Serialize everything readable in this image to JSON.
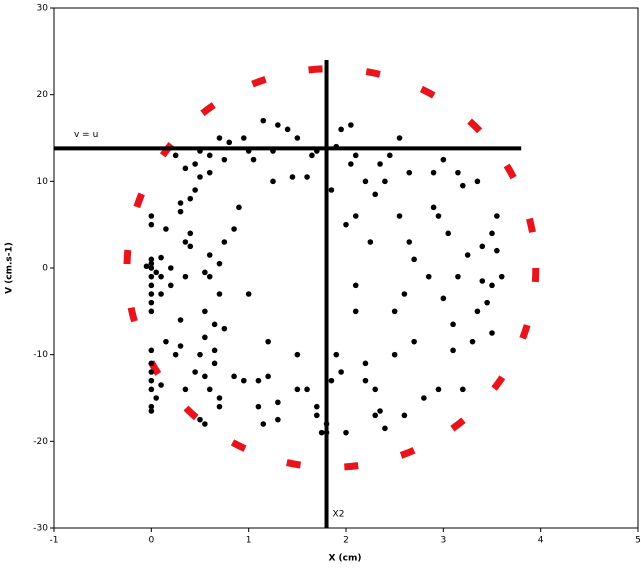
{
  "chart_data": {
    "type": "scatter",
    "x_label": "X (cm)",
    "y_label": "V (cm.s-1)",
    "xlim": [
      -1,
      5
    ],
    "ylim": [
      -30,
      30
    ],
    "xticks": [
      -1,
      0,
      1,
      2,
      3,
      4,
      5
    ],
    "yticks": [
      -30,
      -20,
      -10,
      0,
      10,
      20,
      30
    ],
    "ellipse": {
      "cx": 1.85,
      "cy": 0,
      "rx": 2.1,
      "ry": 23,
      "color": "#e8141b"
    },
    "hline": {
      "y": 13.8,
      "xrange": [
        -1,
        3.8
      ],
      "label": "v = u"
    },
    "vline": {
      "x": 1.8,
      "yrange": [
        -30,
        24
      ],
      "label": "X2"
    },
    "series": [
      {
        "color": "#000000",
        "x": [
          0,
          0,
          0,
          0,
          0,
          0,
          0,
          0,
          0,
          0,
          0,
          0,
          0,
          0,
          0,
          0,
          0,
          0.05,
          -0.05,
          0.1,
          0.1,
          0.1,
          0.15,
          0.2,
          0.2,
          0.15,
          0.3,
          0.3,
          0.3,
          0.3,
          0.35,
          0.35,
          0.4,
          0.4,
          0.4,
          0.45,
          0.5,
          0.45,
          0.5,
          0.55,
          0.55,
          0.55,
          0.55,
          0.6,
          0.6,
          0.6,
          0.65,
          0.65,
          0.7,
          0.7,
          0.6,
          0.6,
          0.7,
          0.7,
          0.75,
          0.75,
          0.75,
          0.8,
          0.5,
          0.5,
          0.45,
          0.35,
          0.25,
          0.25,
          0.35,
          0.7,
          0.65,
          0.9,
          0.95,
          1.0,
          0.95,
          0.85,
          1.05,
          1.1,
          1.15,
          1.2,
          1.25,
          1.25,
          1.3,
          1.1,
          1.15,
          1.2,
          1.3,
          1.3,
          1.4,
          1.5,
          1.45,
          1.5,
          1.6,
          1.6,
          1.65,
          1.7,
          1.7,
          1.75,
          1.8,
          1.7,
          1.85,
          1.85,
          1.8,
          1.9,
          1.95,
          2.05,
          1.9,
          2.0,
          1.95,
          2.05,
          2.1,
          2.1,
          2.1,
          2.2,
          2.2,
          2.25,
          2.3,
          2.3,
          2.35,
          2.3,
          2.2,
          2.4,
          2.35,
          2.4,
          2.45,
          2.5,
          2.5,
          2.55,
          2.6,
          2.55,
          2.65,
          2.6,
          2.65,
          2.7,
          2.8,
          2.85,
          2.9,
          2.95,
          2.95,
          3.0,
          3.0,
          3.05,
          3.1,
          3.15,
          3.15,
          3.2,
          3.2,
          3.25,
          3.3,
          3.35,
          3.35,
          3.4,
          3.45,
          3.5,
          3.5,
          3.55,
          3.6,
          3.55,
          3.5,
          3.4,
          2.0,
          2.1,
          2.7,
          2.9,
          3.1,
          0.1,
          0.05,
          0.85,
          1.0,
          1.5,
          0.55
        ],
        "y": [
          -16.5,
          -16,
          -14,
          -13,
          -12,
          -11,
          -9.5,
          -5,
          -4,
          -3,
          -2,
          -1,
          0,
          0.5,
          1,
          6,
          5,
          -0.5,
          0.2,
          1.2,
          -1,
          -3,
          4.5,
          0,
          -2,
          -8.5,
          -6,
          -9,
          6.5,
          7.5,
          3,
          -1,
          2.5,
          4,
          8,
          12,
          10.5,
          9,
          -10,
          -5,
          -8,
          -12.5,
          -18,
          11,
          13,
          -14,
          -6.5,
          -11,
          0.5,
          -3,
          -1,
          1.5,
          -15,
          -16,
          3,
          -7,
          12.5,
          14.5,
          13.5,
          -17.5,
          -12,
          -14,
          -10,
          13,
          11.5,
          15,
          -9.5,
          7,
          15,
          13.5,
          -13,
          -12.5,
          12.5,
          -13,
          17,
          -12.5,
          10,
          13.5,
          16.5,
          -16,
          -18,
          -8.5,
          -15.5,
          -17.5,
          16,
          15,
          10.5,
          -14,
          -14,
          10.5,
          13,
          -16,
          -17,
          -19,
          -19,
          13.5,
          -13,
          9,
          -18,
          14,
          16,
          16.5,
          -10,
          -19,
          -12,
          12,
          6,
          -5,
          13,
          -13,
          10,
          3,
          -14,
          -17,
          -16.5,
          8.5,
          -11,
          -18.5,
          12,
          10,
          13,
          -5,
          -10,
          15,
          -3,
          6,
          3,
          -17,
          11,
          -8.5,
          -15,
          -1,
          11,
          6,
          -14,
          -3.5,
          12.5,
          4,
          -9.5,
          -1,
          11,
          -14,
          9.5,
          1.5,
          -8.5,
          -5,
          10,
          -1.5,
          -4,
          4,
          -7.5,
          6,
          -1,
          2,
          -2,
          2.5,
          5,
          -2,
          1,
          7,
          -6.5,
          -13.5,
          -15,
          4.5,
          -3,
          -10,
          -0.5
        ]
      }
    ]
  }
}
